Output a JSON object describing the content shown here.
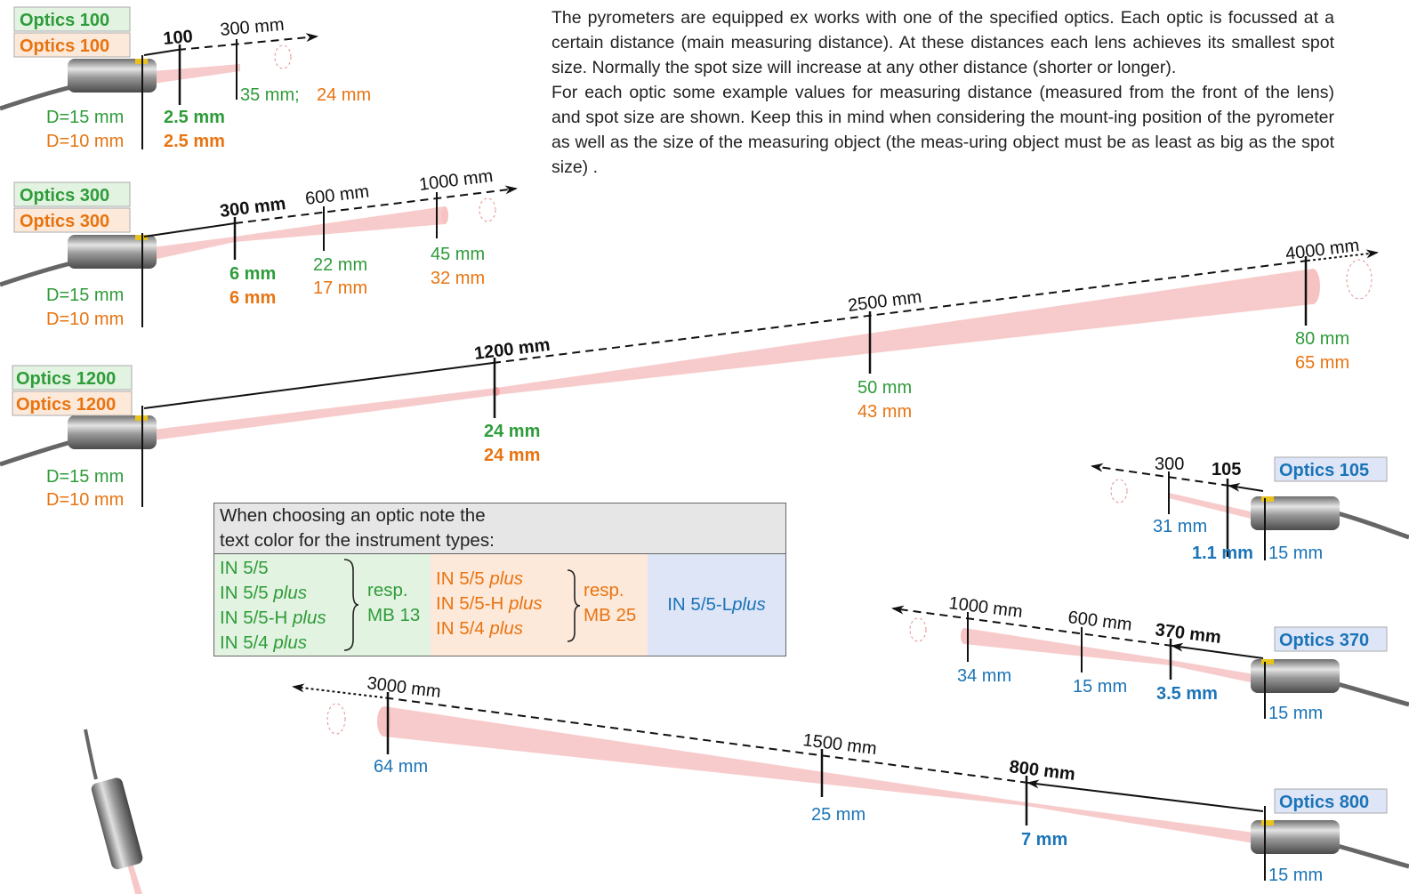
{
  "intro": {
    "p1": "The pyrometers are equipped ex works with one of the specified optics. Each optic is focussed at a certain distance (main measuring distance). At these distances each lens achieves its smallest spot size. Normally the spot size will increase at any other distance (shorter or longer).",
    "p2": "For each optic some example values for measuring distance (measured from the front of the lens) and spot size are shown. Keep this in mind when considering the mount-ing position of the pyrometer as well as the size of the measuring object (the meas-uring object must be as least as big as the spot size) ."
  },
  "colors": {
    "green": "#2e9c3a",
    "orange": "#e87411",
    "blue": "#1b74b7",
    "beam": "#f6c2c2"
  },
  "optics": {
    "o100": {
      "label_green": "Optics 100",
      "label_orange": "Optics 100",
      "d_green": "D=15 mm",
      "d_orange": "D=10 mm",
      "dist_main": "100",
      "dist_far": "300 mm",
      "spot_main_g": "2.5 mm",
      "spot_main_o": "2.5 mm",
      "spot_far_g": "35 mm;",
      "spot_far_o": "24 mm"
    },
    "o300": {
      "label_green": "Optics 300",
      "label_orange": "Optics 300",
      "d_green": "D=15 mm",
      "d_orange": "D=10 mm",
      "dist_main": "300 mm",
      "dist_mid": "600 mm",
      "dist_far": "1000 mm",
      "spot_main_g": "6 mm",
      "spot_main_o": "6 mm",
      "spot_mid_g": "22 mm",
      "spot_mid_o": "17 mm",
      "spot_far_g": "45 mm",
      "spot_far_o": "32 mm"
    },
    "o1200": {
      "label_green": "Optics 1200",
      "label_orange": "Optics 1200",
      "d_green": "D=15 mm",
      "d_orange": "D=10 mm",
      "dist_main": "1200 mm",
      "dist_mid": "2500 mm",
      "dist_far": "4000 mm",
      "spot_main_g": "24 mm",
      "spot_main_o": "24 mm",
      "spot_mid_g": "50 mm",
      "spot_mid_o": "43 mm",
      "spot_far_g": "80 mm",
      "spot_far_o": "65 mm"
    },
    "o105": {
      "label": "Optics 105",
      "d": "15 mm",
      "dist_main": "105",
      "dist_far": "300",
      "spot_main": "1.1 mm",
      "spot_far": "31 mm"
    },
    "o370": {
      "label": "Optics 370",
      "d": "15 mm",
      "dist_main": "370 mm",
      "dist_mid": "600 mm",
      "dist_far": "1000 mm",
      "spot_main": "3.5 mm",
      "spot_mid": "15 mm",
      "spot_far": "34 mm"
    },
    "o800": {
      "label": "Optics 800",
      "d": "15 mm",
      "dist_main": "800 mm",
      "dist_mid": "1500 mm",
      "dist_far": "3000 mm",
      "spot_main": "7 mm",
      "spot_mid": "25 mm",
      "spot_far": "64 mm"
    }
  },
  "legend": {
    "heading_line1": "When choosing an optic note the",
    "heading_line2": "text color for the instrument types:",
    "green_types": [
      "IN 5/5",
      "IN 5/5 ",
      "plus",
      "IN 5/5-H ",
      "plus",
      "IN 5/4 ",
      "plus"
    ],
    "green_resp": "resp.",
    "green_mb": "MB 13",
    "orange_types": [
      "IN 5/5 ",
      "plus",
      "IN 5/5-H ",
      "plus",
      "IN 5/4 ",
      "plus"
    ],
    "orange_resp": "resp.",
    "orange_mb": "MB 25",
    "blue_type": "IN 5/5-L ",
    "blue_type_italic": "plus"
  }
}
